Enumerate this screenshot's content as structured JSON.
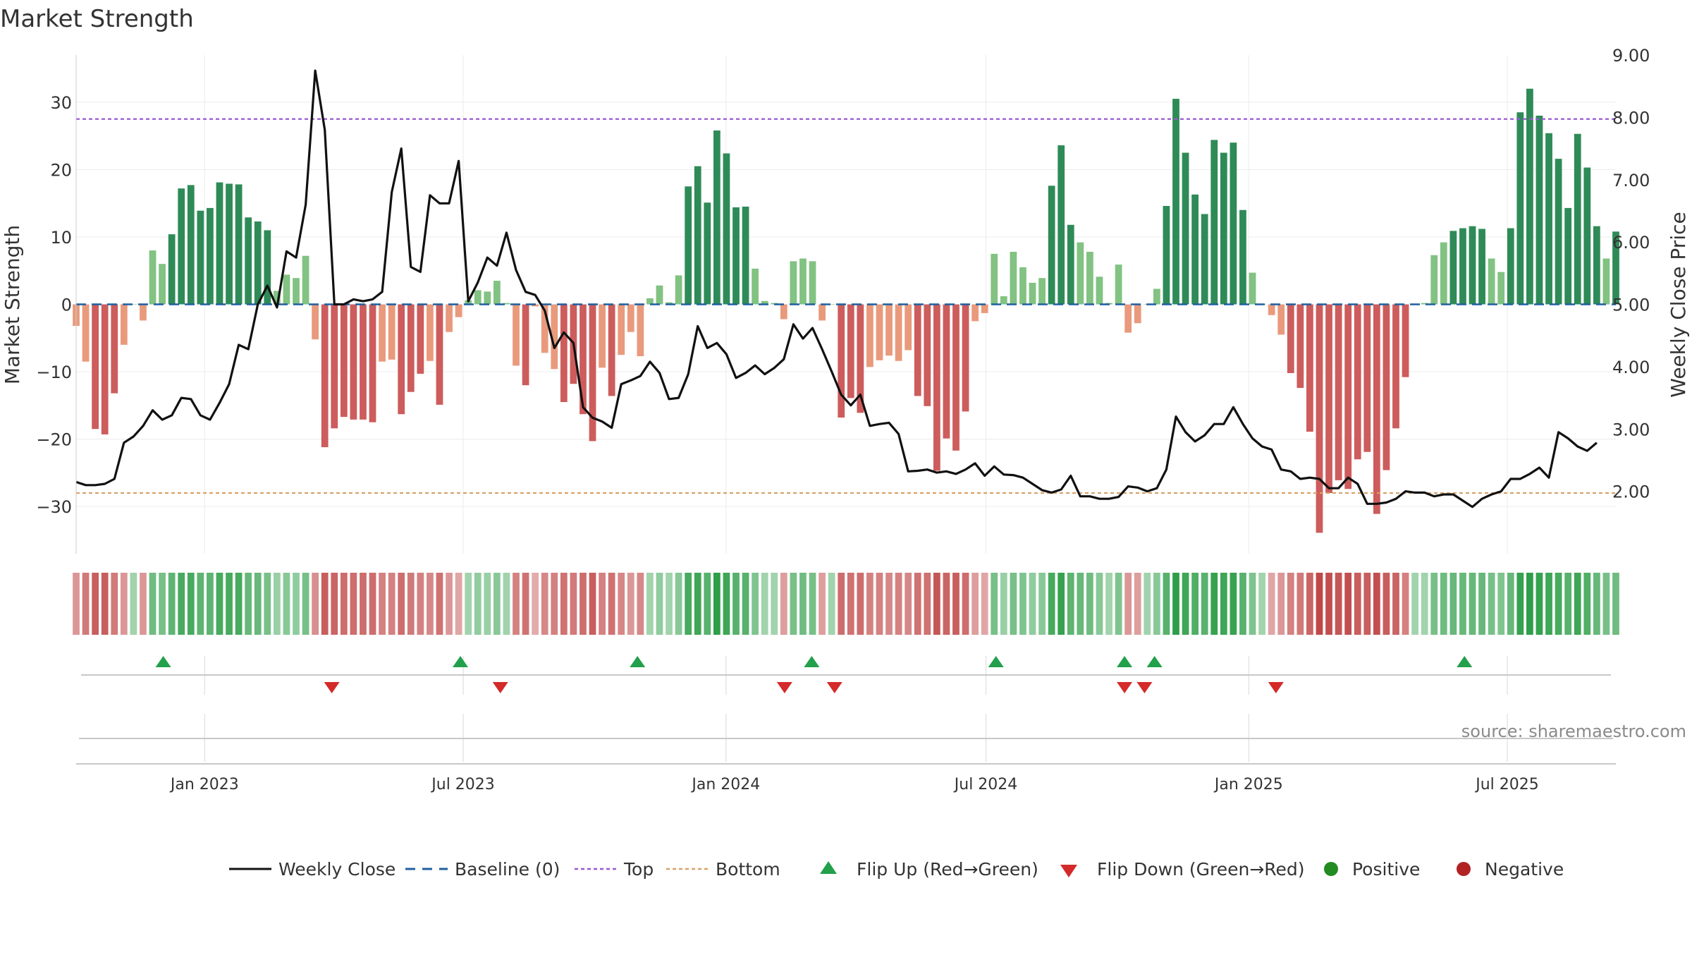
{
  "title": "Market Strength",
  "source": "source: sharemaestro.com",
  "colors": {
    "line": "#111111",
    "baseline": "#1f5fa0",
    "top": "#9b59d0",
    "bottom": "#d9a36a",
    "green_dark": "#2e8b57",
    "green_light": "#82c282",
    "red_dark": "#cd5c5c",
    "red_light": "#e99a7c",
    "flip_up": "#22a04b",
    "flip_down": "#d42a2a",
    "positive": "#228b22",
    "negative": "#b22222",
    "grid": "#ececec",
    "axis_text": "#333333"
  },
  "chart_data": {
    "type": "bar",
    "title": "Market Strength",
    "ylabel": "Market Strength",
    "y2label": "Weekly Close Price",
    "ylim": [
      -37,
      37
    ],
    "y2lim": [
      1.0,
      9.0
    ],
    "yticks": [
      30,
      20,
      10,
      0,
      -10,
      -20,
      -30
    ],
    "ytick_labels": [
      "30",
      "20",
      "10",
      "0",
      "−10",
      "−20",
      "−30"
    ],
    "y2ticks": [
      9,
      8,
      7,
      6,
      5,
      4,
      3,
      2
    ],
    "y2tick_labels": [
      "9.00",
      "8.00",
      "7.00",
      "6.00",
      "5.00",
      "4.00",
      "3.00",
      "2.00"
    ],
    "x_start": "2022-10-03",
    "x_end": "2025-09-15",
    "xtick_dates": [
      "2023-01-01",
      "2023-07-01",
      "2024-01-01",
      "2024-07-01",
      "2025-01-01",
      "2025-07-01"
    ],
    "xtick_labels": [
      "Jan 2023",
      "Jul 2023",
      "Jan 2024",
      "Jul 2024",
      "Jan 2025",
      "Jul 2025"
    ],
    "top_level": 27.5,
    "bottom_level": -28,
    "baseline": 0,
    "strength": [
      -3.2,
      -8.5,
      -18.5,
      -19.3,
      -13.2,
      -6,
      0,
      -2.4,
      8,
      6,
      10.4,
      17.2,
      17.7,
      13.9,
      14.3,
      18.1,
      17.9,
      17.8,
      12.9,
      12.3,
      11,
      2,
      4.4,
      3.9,
      7.2,
      -5.2,
      -21.2,
      -18.4,
      -16.7,
      -17.1,
      -17.1,
      -17.5,
      -8.5,
      -8.2,
      -16.3,
      -13,
      -10.3,
      -8.4,
      -14.9,
      -4.1,
      -1.9,
      0.6,
      2.1,
      1.9,
      3.5,
      0.2,
      -9.1,
      -12,
      -0.3,
      -7.2,
      -9.6,
      -14.5,
      -11.8,
      -16.3,
      -20.3,
      -9.4,
      -13.6,
      -7.5,
      -4.1,
      -7.7,
      0.9,
      2.8,
      0.3,
      4.3,
      17.5,
      20.5,
      15.1,
      25.8,
      22.4,
      14.4,
      14.5,
      5.3,
      0.5,
      0.2,
      -2.2,
      6.4,
      6.8,
      6.4,
      -2.4,
      0,
      -16.8,
      -13.9,
      -16.1,
      -9.3,
      -8.3,
      -7.6,
      -8.4,
      -6.8,
      -13.6,
      -15.1,
      -24.7,
      -19.9,
      -21.7,
      -15.9,
      -2.5,
      -1.3,
      7.5,
      1.2,
      7.8,
      5.5,
      3.2,
      3.9,
      17.6,
      23.6,
      11.8,
      9.2,
      7.8,
      4.1,
      0.2,
      5.9,
      -4.2,
      -2.8,
      0,
      2.3,
      14.6,
      30.5,
      22.5,
      16.3,
      13.4,
      24.4,
      22.5,
      24,
      14,
      4.7,
      0,
      -1.6,
      -4.5,
      -10.2,
      -12.4,
      -18.9,
      -33.9,
      -28,
      -26.1,
      -27.4,
      -23,
      -21.9,
      -31.1,
      -24.6,
      -18.4,
      -10.8,
      0.1,
      0.2,
      7.3,
      9.2,
      10.9,
      11.3,
      11.6,
      11.2,
      6.8,
      4.8,
      11.3,
      28.5,
      32,
      28,
      25.4,
      21.6,
      14.3,
      25.3,
      20.3,
      11.6,
      6.8,
      10.8
    ],
    "close": [
      2.15,
      2.1,
      2.1,
      2.12,
      2.2,
      2.78,
      2.88,
      3.05,
      3.3,
      3.15,
      3.22,
      3.5,
      3.48,
      3.22,
      3.15,
      3.42,
      3.72,
      4.35,
      4.28,
      5.0,
      5.3,
      4.95,
      5.85,
      5.75,
      6.6,
      8.75,
      7.8,
      5.0,
      5.0,
      5.08,
      5.05,
      5.08,
      5.2,
      6.8,
      7.5,
      5.6,
      5.52,
      6.75,
      6.62,
      6.62,
      7.3,
      5.05,
      5.35,
      5.75,
      5.62,
      6.15,
      5.55,
      5.2,
      5.15,
      4.9,
      4.3,
      4.55,
      4.38,
      3.35,
      3.18,
      3.12,
      3.02,
      3.72,
      3.78,
      3.85,
      4.08,
      3.9,
      3.48,
      3.5,
      3.88,
      4.65,
      4.3,
      4.38,
      4.2,
      3.82,
      3.9,
      4.02,
      3.88,
      3.98,
      4.12,
      4.68,
      4.45,
      4.62,
      4.28,
      3.92,
      3.55,
      3.38,
      3.55,
      3.05,
      3.08,
      3.1,
      2.92,
      2.32,
      2.33,
      2.35,
      2.3,
      2.32,
      2.28,
      2.35,
      2.45,
      2.25,
      2.4,
      2.27,
      2.26,
      2.22,
      2.12,
      2.02,
      1.98,
      2.03,
      2.25,
      1.92,
      1.92,
      1.88,
      1.88,
      1.91,
      2.08,
      2.06,
      2.0,
      2.05,
      2.35,
      3.2,
      2.95,
      2.8,
      2.9,
      3.08,
      3.08,
      3.35,
      3.08,
      2.85,
      2.72,
      2.67,
      2.35,
      2.32,
      2.2,
      2.22,
      2.2,
      2.05,
      2.05,
      2.22,
      2.12,
      1.8,
      1.8,
      1.82,
      1.88,
      2.0,
      1.98,
      1.98,
      1.92,
      1.95,
      1.95,
      1.85,
      1.75,
      1.88,
      1.95,
      2.0,
      2.2,
      2.2,
      2.28,
      2.38,
      2.22,
      2.95,
      2.85,
      2.72,
      2.65,
      2.78
    ],
    "ribbon_intensity": [
      0.45,
      0.65,
      0.85,
      0.85,
      0.65,
      0.45,
      0.3,
      0.45,
      0.6,
      0.55,
      0.7,
      0.85,
      0.85,
      0.7,
      0.7,
      0.85,
      0.85,
      0.85,
      0.65,
      0.65,
      0.55,
      0.35,
      0.45,
      0.4,
      0.55,
      0.5,
      0.85,
      0.8,
      0.75,
      0.75,
      0.75,
      0.75,
      0.6,
      0.6,
      0.75,
      0.65,
      0.6,
      0.55,
      0.7,
      0.45,
      0.35,
      0.3,
      0.4,
      0.35,
      0.45,
      0.3,
      0.6,
      0.7,
      0.3,
      0.55,
      0.6,
      0.7,
      0.65,
      0.75,
      0.85,
      0.6,
      0.7,
      0.55,
      0.45,
      0.55,
      0.3,
      0.4,
      0.3,
      0.45,
      0.85,
      0.9,
      0.75,
      1.0,
      0.9,
      0.75,
      0.75,
      0.5,
      0.3,
      0.3,
      0.4,
      0.55,
      0.6,
      0.55,
      0.4,
      0.3,
      0.75,
      0.7,
      0.75,
      0.6,
      0.6,
      0.55,
      0.6,
      0.55,
      0.7,
      0.7,
      0.9,
      0.8,
      0.85,
      0.75,
      0.4,
      0.35,
      0.55,
      0.35,
      0.55,
      0.5,
      0.4,
      0.45,
      0.85,
      0.95,
      0.7,
      0.65,
      0.6,
      0.45,
      0.3,
      0.5,
      0.45,
      0.4,
      0.3,
      0.45,
      0.75,
      1.0,
      0.9,
      0.8,
      0.75,
      0.95,
      0.9,
      0.95,
      0.75,
      0.5,
      0.3,
      0.35,
      0.45,
      0.6,
      0.65,
      0.8,
      1.0,
      0.95,
      0.9,
      0.95,
      0.85,
      0.85,
      0.95,
      0.85,
      0.8,
      0.6,
      0.3,
      0.3,
      0.55,
      0.6,
      0.65,
      0.65,
      0.65,
      0.65,
      0.55,
      0.5,
      0.65,
      0.95,
      1.0,
      0.95,
      0.9,
      0.85,
      0.75,
      0.9,
      0.8,
      0.65,
      0.55,
      0.6
    ],
    "flip_up_dates": [
      "2022-12-03",
      "2023-06-29",
      "2023-10-31",
      "2024-03-01",
      "2024-07-08",
      "2024-10-06",
      "2024-10-27",
      "2025-06-01"
    ],
    "flip_down_dates": [
      "2023-03-31",
      "2023-07-27",
      "2024-02-11",
      "2024-03-17",
      "2024-10-06",
      "2024-10-20",
      "2025-01-20"
    ],
    "legend": [
      {
        "label": "Weekly Close",
        "key": "line"
      },
      {
        "label": "Baseline (0)",
        "key": "baseline"
      },
      {
        "label": "Top",
        "key": "top"
      },
      {
        "label": "Bottom",
        "key": "bottom"
      },
      {
        "label": "Flip Up (Red→Green)",
        "key": "flip_up"
      },
      {
        "label": "Flip Down (Green→Red)",
        "key": "flip_down"
      },
      {
        "label": "Positive",
        "key": "positive"
      },
      {
        "label": "Negative",
        "key": "negative"
      }
    ]
  }
}
